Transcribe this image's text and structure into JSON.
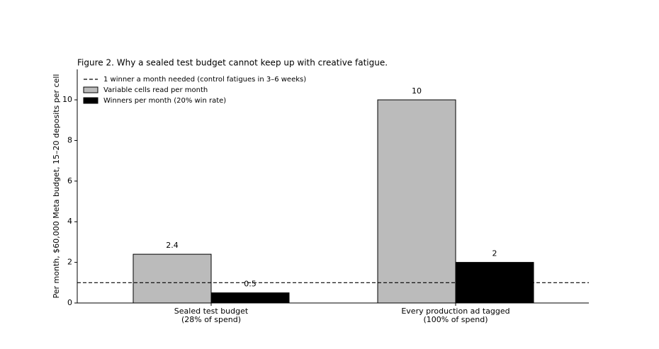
{
  "chart_data": {
    "type": "bar",
    "title": "Figure 2. Why a sealed test budget cannot keep up with creative fatigue.",
    "y_label": "Per month, $60,000 Meta budget, 15–20 deposits per cell",
    "categories": [
      "Sealed test budget\n(28% of spend)",
      "Every production ad tagged\n(100% of spend)"
    ],
    "series": [
      {
        "name": "Variable cells read per month",
        "color": "#bbbbbb",
        "values": [
          2.4,
          10
        ]
      },
      {
        "name": "Winners per month (20% win rate)",
        "color": "#000000",
        "values": [
          0.5,
          2
        ]
      }
    ],
    "reference_line": {
      "value": 1,
      "label": "1 winner a month needed (control fatigues in 3–6 weeks)"
    },
    "ylim": [
      0,
      11.5
    ],
    "yticks": [
      0,
      2,
      4,
      6,
      8,
      10
    ],
    "legend": "upper left"
  }
}
